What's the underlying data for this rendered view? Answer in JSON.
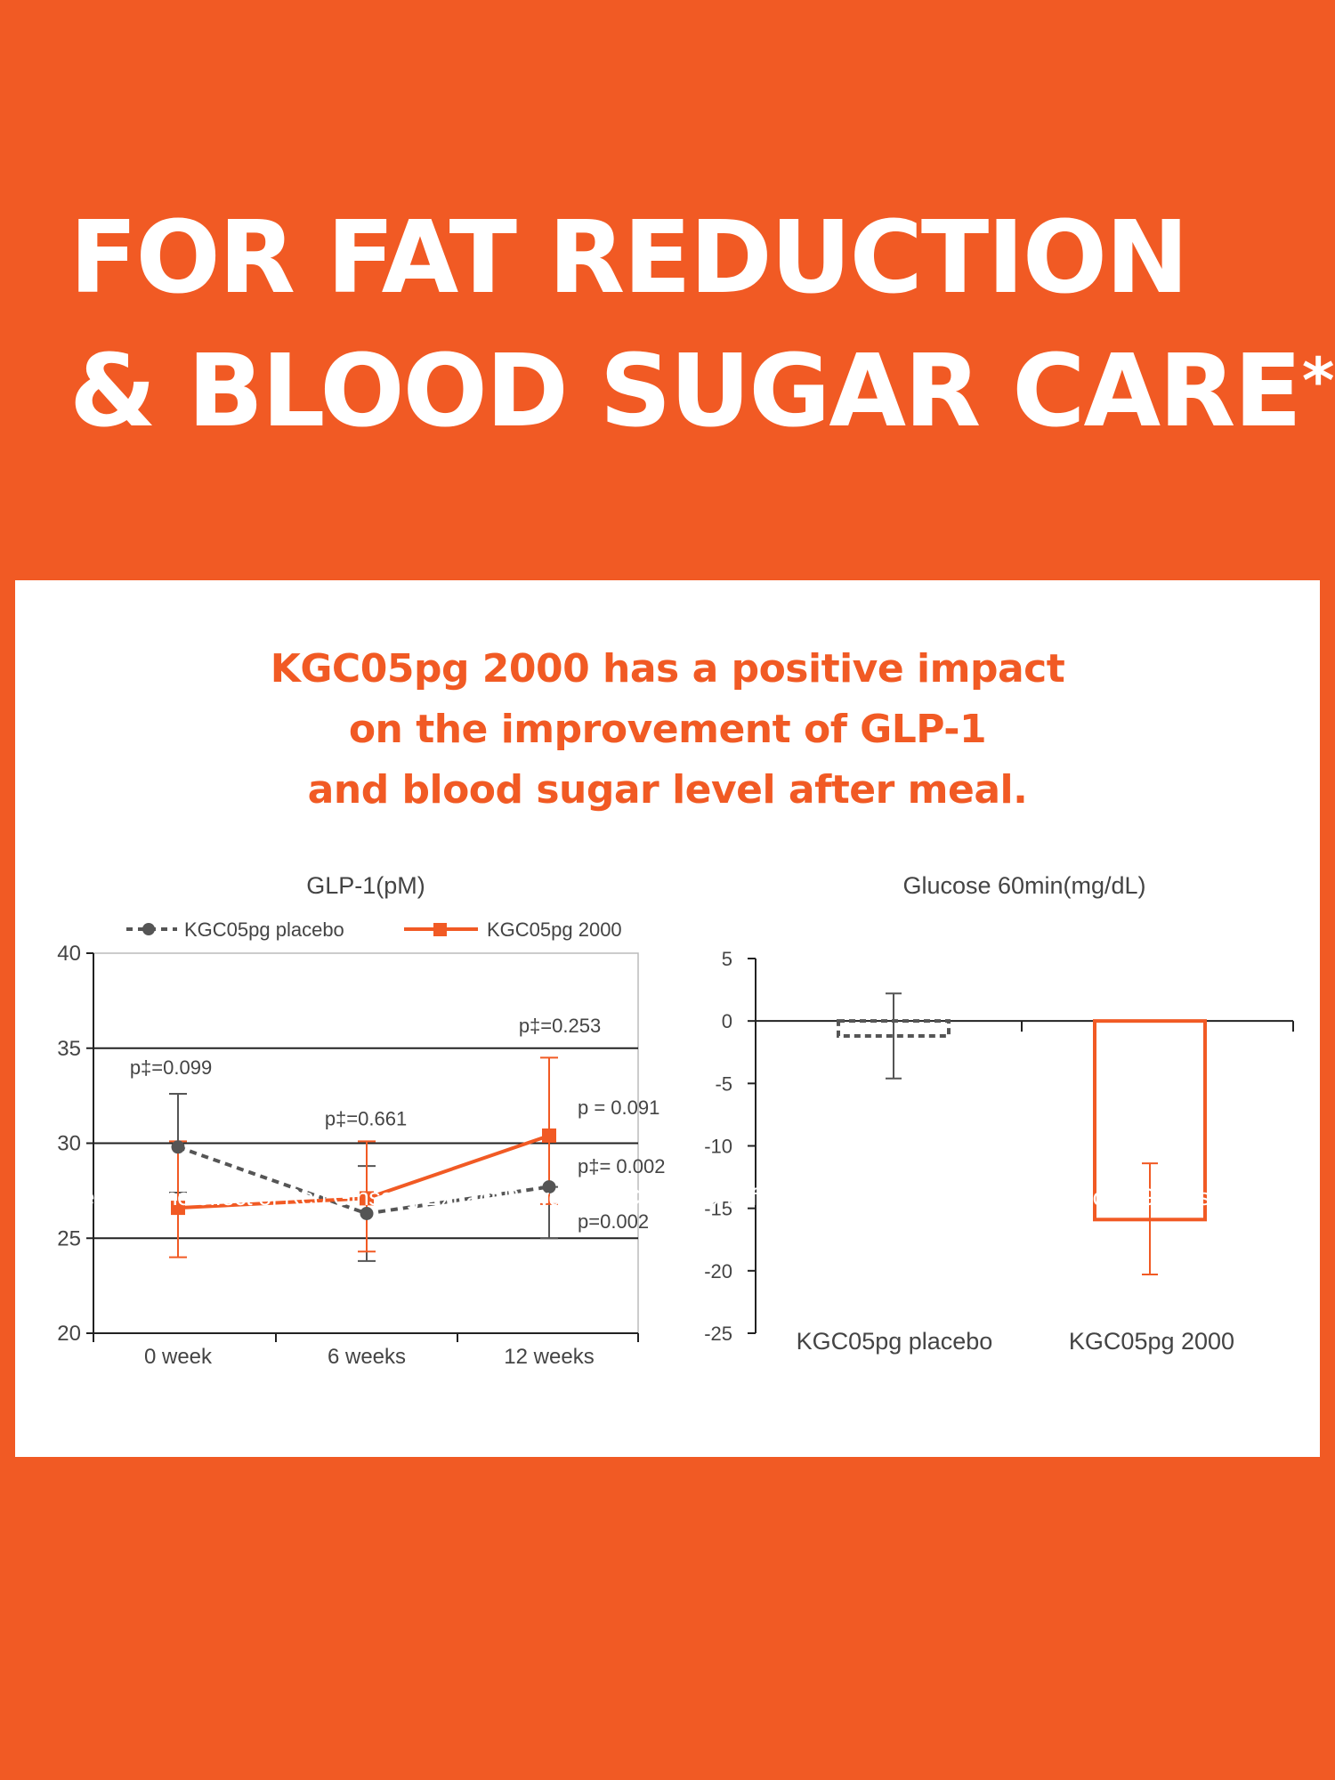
{
  "headline": {
    "line1": "FOR FAT REDUCTION",
    "line2": "& BLOOD SUGAR CARE",
    "asterisk": "*"
  },
  "subhead": {
    "line1": "KGC05pg 2000 has a positive impact",
    "line2": "on the improvement of GLP-1",
    "line3": "and blood sugar level after meal."
  },
  "reference": "*Reference : The effect of Red Ginseng Extract Powder(KGC05pg) on efficacy and safety to improve in Blood Glucose",
  "colors": {
    "background": "#F15A24",
    "accent": "#F15A24",
    "placebo": "#555555",
    "panel": "#FFFFFF"
  },
  "chart_data": [
    {
      "type": "line",
      "title": "GLP-1(pM)",
      "xlabel": "",
      "ylabel": "",
      "categories": [
        "0 week",
        "6 weeks",
        "12 weeks"
      ],
      "ylim": [
        20,
        40
      ],
      "yticks": [
        20,
        25,
        30,
        35,
        40
      ],
      "grid": true,
      "legend": "top",
      "series": [
        {
          "name": "KGC05pg placebo",
          "values": [
            29.8,
            26.3,
            27.7
          ],
          "err_low": [
            27.4,
            23.8,
            25.0
          ],
          "err_high": [
            32.6,
            28.8,
            27.7
          ],
          "style": "dashed",
          "marker": "circle",
          "color": "#555555"
        },
        {
          "name": "KGC05pg 2000",
          "values": [
            26.6,
            27.1,
            30.4
          ],
          "err_low": [
            24.0,
            24.3,
            26.8
          ],
          "err_high": [
            30.1,
            30.1,
            34.5
          ],
          "style": "solid",
          "marker": "square",
          "color": "#F15A24"
        }
      ],
      "annotations": [
        {
          "text": "p‡=0.099",
          "x": "0 week",
          "y": 34.0
        },
        {
          "text": "p‡=0.661",
          "x": "6 weeks",
          "y": 31.3
        },
        {
          "text": "p‡=0.253",
          "x": "12 weeks",
          "y": 36.2
        },
        {
          "text": "p = 0.091",
          "x": "12 weeks",
          "y": 31.9
        },
        {
          "text": "p‡= 0.002",
          "x": "12 weeks",
          "y": 28.8
        },
        {
          "text": "p=0.002",
          "x": "12 weeks",
          "y": 25.9
        }
      ]
    },
    {
      "type": "bar",
      "title": "Glucose 60min(mg/dL)",
      "categories": [
        "KGC05pg placebo",
        "KGC05pg 2000"
      ],
      "ylim": [
        -25,
        5
      ],
      "yticks": [
        5,
        0,
        -5,
        -10,
        -15,
        -20,
        -25
      ],
      "grid": false,
      "series": [
        {
          "name": "",
          "values": [
            -1.2,
            -15.9
          ],
          "err_low": [
            -4.6,
            -20.3
          ],
          "err_high": [
            2.2,
            -11.4
          ],
          "colors": [
            "#555555",
            "#F15A24"
          ],
          "styles": [
            "dashed",
            "solid"
          ]
        }
      ]
    }
  ]
}
